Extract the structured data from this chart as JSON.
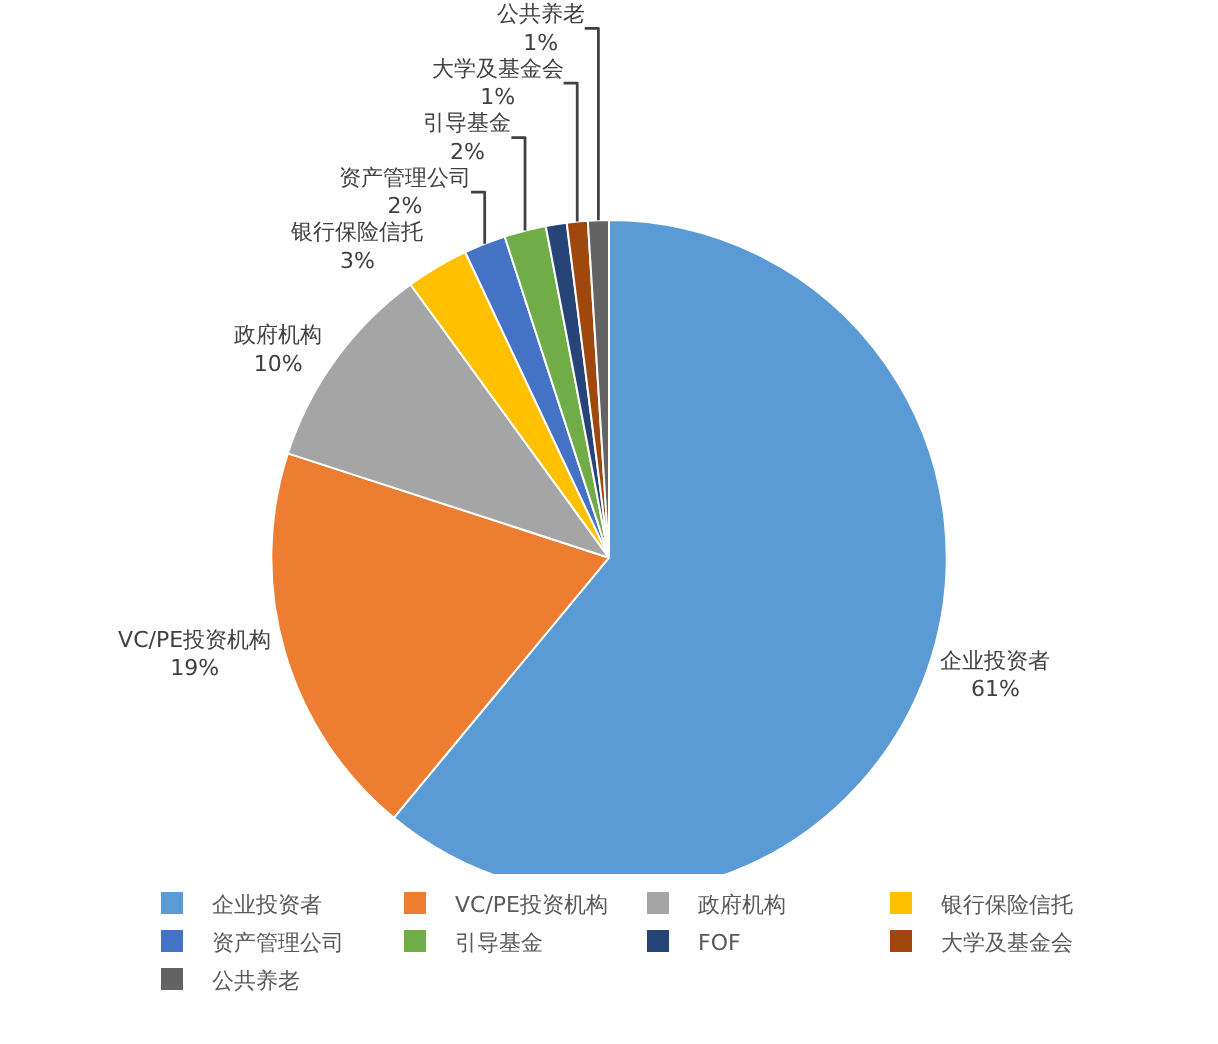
{
  "chart_data": {
    "type": "pie",
    "categories": [
      "企业投资者",
      "VC/PE投资机构",
      "政府机构",
      "银行保险信托",
      "资产管理公司",
      "引导基金",
      "FOF",
      "大学及基金会",
      "公共养老"
    ],
    "values": [
      61,
      19,
      10,
      3,
      2,
      2,
      1,
      1,
      1
    ],
    "value_labels": [
      "61%",
      "19%",
      "10%",
      "3%",
      "2%",
      "2%",
      null,
      "1%",
      "1%"
    ],
    "colors": [
      "#5b9bd5",
      "#ed7d31",
      "#a5a5a5",
      "#ffc000",
      "#4472c4",
      "#70ad47",
      "#264478",
      "#9e480e",
      "#636363"
    ],
    "legend": "bottom"
  }
}
